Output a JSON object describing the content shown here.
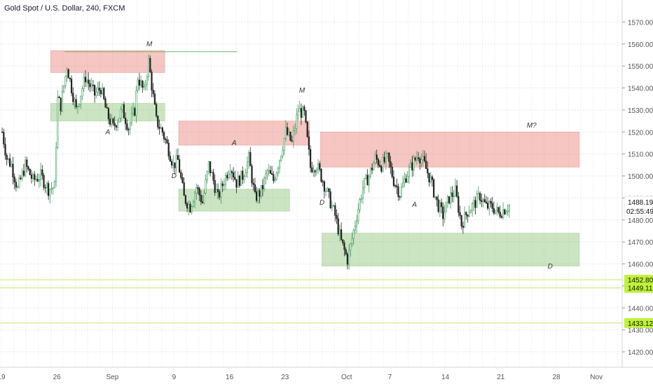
{
  "chart_title": "Gold Spot / U.S. Dollar, 240, FXCM",
  "chart_data": {
    "type": "candlestick",
    "title": "Gold Spot / U.S. Dollar, 240, FXCM",
    "ylim": [
      1413,
      1580
    ],
    "y_ticks": [
      1420,
      1430,
      1440,
      1450,
      1460,
      1470,
      1480,
      1490,
      1500,
      1510,
      1520,
      1530,
      1540,
      1550,
      1560,
      1570
    ],
    "x_ticks": [
      {
        "label": "19",
        "i": 0
      },
      {
        "label": "26",
        "i": 36
      },
      {
        "label": "Sep",
        "i": 72
      },
      {
        "label": "9",
        "i": 112
      },
      {
        "label": "16",
        "i": 148
      },
      {
        "label": "23",
        "i": 184
      },
      {
        "label": "Oct",
        "i": 224
      },
      {
        "label": "7",
        "i": 252
      },
      {
        "label": "14",
        "i": 288
      },
      {
        "label": "21",
        "i": 324
      },
      {
        "label": "28",
        "i": 360
      },
      {
        "label": "Nov",
        "i": 386
      }
    ],
    "grid": true,
    "price_axis_side": "right",
    "current_price": {
      "value": 1488.19,
      "label": "1488.19",
      "countdown": "02:55:49"
    },
    "horizontal_levels": [
      {
        "label": "1452.80",
        "value": 1452.8
      },
      {
        "label": "1449.11",
        "value": 1449.11
      },
      {
        "label": "1433.12",
        "value": 1433.12
      }
    ],
    "zones": [
      {
        "kind": "supply",
        "i0": 32,
        "i1": 106,
        "y0": 1547,
        "y1": 1557
      },
      {
        "kind": "demand",
        "i0": 32,
        "i1": 106,
        "y0": 1525,
        "y1": 1533
      },
      {
        "kind": "supply",
        "i0": 115,
        "i1": 200,
        "y0": 1514,
        "y1": 1525
      },
      {
        "kind": "demand",
        "i0": 115,
        "i1": 187,
        "y0": 1484,
        "y1": 1494
      },
      {
        "kind": "supply",
        "i0": 207,
        "i1": 375,
        "y0": 1504,
        "y1": 1520
      },
      {
        "kind": "demand",
        "i0": 208,
        "i1": 375,
        "y0": 1459,
        "y1": 1474
      }
    ],
    "trend_line": {
      "i0": 41,
      "i1": 153,
      "value": 1556.5
    },
    "annotations": [
      {
        "text": "M",
        "i": 96,
        "value": 1559
      },
      {
        "text": "A",
        "i": 69,
        "value": 1519
      },
      {
        "text": "D",
        "i": 112,
        "value": 1499
      },
      {
        "text": "A",
        "i": 151,
        "value": 1514
      },
      {
        "text": "M",
        "i": 195,
        "value": 1538
      },
      {
        "text": "D",
        "i": 208,
        "value": 1487
      },
      {
        "text": "A",
        "i": 268,
        "value": 1486
      },
      {
        "text": "M?",
        "i": 344,
        "value": 1522
      },
      {
        "text": "D",
        "i": 356,
        "value": 1458
      }
    ],
    "path_points": [
      [
        0,
        1520
      ],
      [
        3,
        1508
      ],
      [
        6,
        1505
      ],
      [
        10,
        1494
      ],
      [
        15,
        1505
      ],
      [
        20,
        1498
      ],
      [
        25,
        1500
      ],
      [
        30,
        1494
      ],
      [
        34,
        1495
      ],
      [
        36,
        1535
      ],
      [
        38,
        1532
      ],
      [
        42,
        1550
      ],
      [
        48,
        1530
      ],
      [
        54,
        1545
      ],
      [
        60,
        1537
      ],
      [
        64,
        1540
      ],
      [
        68,
        1528
      ],
      [
        72,
        1522
      ],
      [
        78,
        1530
      ],
      [
        82,
        1522
      ],
      [
        86,
        1530
      ],
      [
        88,
        1545
      ],
      [
        92,
        1538
      ],
      [
        95,
        1552
      ],
      [
        100,
        1525
      ],
      [
        104,
        1520
      ],
      [
        108,
        1512
      ],
      [
        111,
        1505
      ],
      [
        114,
        1507
      ],
      [
        118,
        1490
      ],
      [
        122,
        1486
      ],
      [
        126,
        1495
      ],
      [
        130,
        1488
      ],
      [
        134,
        1505
      ],
      [
        137,
        1498
      ],
      [
        140,
        1490
      ],
      [
        144,
        1498
      ],
      [
        148,
        1505
      ],
      [
        152,
        1497
      ],
      [
        156,
        1500
      ],
      [
        160,
        1508
      ],
      [
        164,
        1490
      ],
      [
        168,
        1493
      ],
      [
        172,
        1502
      ],
      [
        176,
        1498
      ],
      [
        180,
        1508
      ],
      [
        184,
        1520
      ],
      [
        188,
        1515
      ],
      [
        192,
        1530
      ],
      [
        196,
        1528
      ],
      [
        200,
        1504
      ],
      [
        204,
        1505
      ],
      [
        208,
        1498
      ],
      [
        212,
        1490
      ],
      [
        216,
        1482
      ],
      [
        220,
        1470
      ],
      [
        224,
        1462
      ],
      [
        226,
        1468
      ],
      [
        230,
        1482
      ],
      [
        234,
        1495
      ],
      [
        238,
        1500
      ],
      [
        242,
        1508
      ],
      [
        246,
        1505
      ],
      [
        250,
        1508
      ],
      [
        254,
        1498
      ],
      [
        258,
        1492
      ],
      [
        262,
        1500
      ],
      [
        266,
        1505
      ],
      [
        270,
        1510
      ],
      [
        274,
        1505
      ],
      [
        278,
        1498
      ],
      [
        282,
        1488
      ],
      [
        286,
        1482
      ],
      [
        290,
        1490
      ],
      [
        294,
        1493
      ],
      [
        298,
        1478
      ],
      [
        302,
        1484
      ],
      [
        306,
        1487
      ],
      [
        310,
        1491
      ],
      [
        314,
        1486
      ],
      [
        318,
        1486
      ],
      [
        322,
        1483
      ],
      [
        326,
        1485
      ],
      [
        330,
        1487
      ]
    ]
  }
}
